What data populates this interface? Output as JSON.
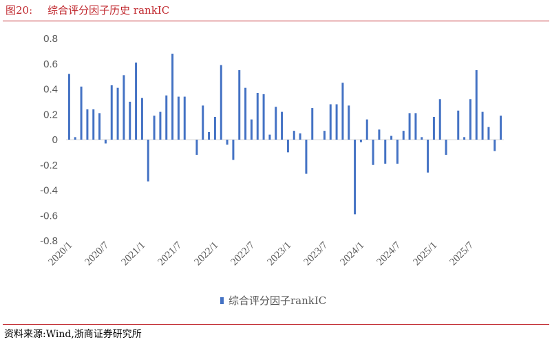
{
  "header": {
    "figure_number": "图20:",
    "figure_title": "综合评分因子历史 rankIC"
  },
  "source_text": "资料来源:Wind,浙商证券研究所",
  "colors": {
    "accent": "#c0272d",
    "bar": "#4472c4",
    "axis_text": "#595959",
    "zero_line": "#d9d9d9"
  },
  "chart_data": {
    "type": "bar",
    "title": "综合评分因子历史 rankIC",
    "xlabel": "",
    "ylabel": "",
    "ylim": [
      -0.8,
      0.8
    ],
    "y_ticks": [
      "0.8",
      "0.6",
      "0.4",
      "0.2",
      "0",
      "-0.2",
      "-0.4",
      "-0.6",
      "-0.8"
    ],
    "y_tick_values": [
      0.8,
      0.6,
      0.4,
      0.2,
      0,
      -0.2,
      -0.4,
      -0.6,
      -0.8
    ],
    "grid": false,
    "legend": "bottom-center",
    "categories": [
      "2020/1",
      "2020/2",
      "2020/3",
      "2020/4",
      "2020/5",
      "2020/6",
      "2020/7",
      "2020/8",
      "2020/9",
      "2020/10",
      "2020/11",
      "2020/12",
      "2021/1",
      "2021/2",
      "2021/3",
      "2021/4",
      "2021/5",
      "2021/6",
      "2021/7",
      "2021/8",
      "2021/9",
      "2021/10",
      "2021/11",
      "2021/12",
      "2022/1",
      "2022/2",
      "2022/3",
      "2022/4",
      "2022/5",
      "2022/6",
      "2022/7",
      "2022/8",
      "2022/9",
      "2022/10",
      "2022/11",
      "2022/12",
      "2023/1",
      "2023/2",
      "2023/3",
      "2023/4",
      "2023/5",
      "2023/6",
      "2023/7",
      "2023/8",
      "2023/9",
      "2023/10",
      "2023/11",
      "2023/12",
      "2024/1",
      "2024/2",
      "2024/3",
      "2024/4",
      "2024/5",
      "2024/6",
      "2024/7",
      "2024/8",
      "2024/9",
      "2024/10",
      "2024/11",
      "2024/12",
      "2025/1",
      "2025/2",
      "2025/3",
      "2025/4",
      "2025/5",
      "2025/6",
      "2025/7",
      "2025/8",
      "2025/9",
      "2025/10",
      "2025/11",
      "2025/12"
    ],
    "x_tick_labels": [
      "2020/1",
      "2020/7",
      "2021/1",
      "2021/7",
      "2022/1",
      "2022/7",
      "2023/1",
      "2023/7",
      "2024/1",
      "2024/7",
      "2025/1",
      "2025/7"
    ],
    "series": [
      {
        "name": "综合评分因子rankIC",
        "values": [
          0.52,
          0.02,
          0.42,
          0.24,
          0.24,
          0.21,
          -0.03,
          0.43,
          0.41,
          0.51,
          0.3,
          0.61,
          0.33,
          -0.33,
          0.19,
          0.22,
          0.35,
          0.68,
          0.34,
          0.34,
          0.0,
          -0.12,
          0.27,
          0.06,
          0.18,
          0.59,
          -0.04,
          -0.16,
          0.55,
          0.41,
          0.16,
          0.37,
          0.36,
          0.04,
          0.26,
          0.22,
          -0.1,
          0.07,
          0.05,
          -0.27,
          0.25,
          0.0,
          0.07,
          0.28,
          0.28,
          0.45,
          0.27,
          -0.59,
          -0.02,
          0.16,
          -0.2,
          0.08,
          -0.19,
          0.03,
          -0.19,
          0.07,
          0.21,
          0.21,
          0.02,
          -0.26,
          0.18,
          0.32,
          -0.12,
          0.0,
          0.23,
          0.02,
          0.32,
          0.55,
          0.22,
          0.1,
          -0.09,
          0.19
        ]
      }
    ]
  }
}
